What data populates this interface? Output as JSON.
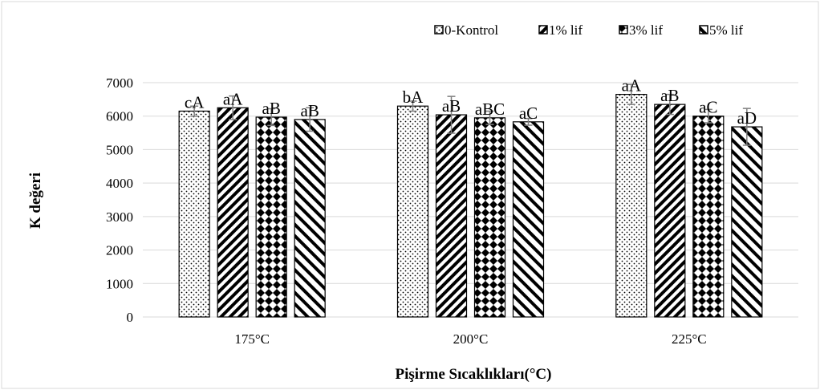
{
  "chart_data": {
    "type": "bar",
    "xlabel": "Pişirme Sıcaklıkları(°C)",
    "ylabel": "K değeri",
    "categories": [
      "175°C",
      "200°C",
      "225°C"
    ],
    "ylim": [
      0,
      7000
    ],
    "yticks": [
      0,
      1000,
      2000,
      3000,
      4000,
      5000,
      6000,
      7000
    ],
    "grid": true,
    "legend": "top-right",
    "series": [
      {
        "name": "0-Kontrol",
        "color": "#000000",
        "pattern": "dots",
        "values": [
          6150,
          6300,
          6650
        ],
        "errors": [
          150,
          150,
          300
        ],
        "letters": [
          "cA",
          "bA",
          "aA"
        ]
      },
      {
        "name": "1% lif",
        "color": "#000000",
        "pattern": "diagonal",
        "values": [
          6250,
          6040,
          6350
        ],
        "errors": [
          350,
          550,
          300
        ],
        "letters": [
          "aA",
          "aB",
          "aB"
        ]
      },
      {
        "name": "3% lif",
        "color": "#000000",
        "pattern": "checker",
        "values": [
          5970,
          5950,
          6000
        ],
        "errors": [
          250,
          200,
          200
        ],
        "letters": [
          "aB",
          "aBC",
          "aC"
        ]
      },
      {
        "name": "5% lif",
        "color": "#000000",
        "pattern": "backslash",
        "values": [
          5900,
          5830,
          5680
        ],
        "errors": [
          350,
          100,
          550
        ],
        "letters": [
          "aB",
          "aC",
          "aD"
        ]
      }
    ]
  }
}
